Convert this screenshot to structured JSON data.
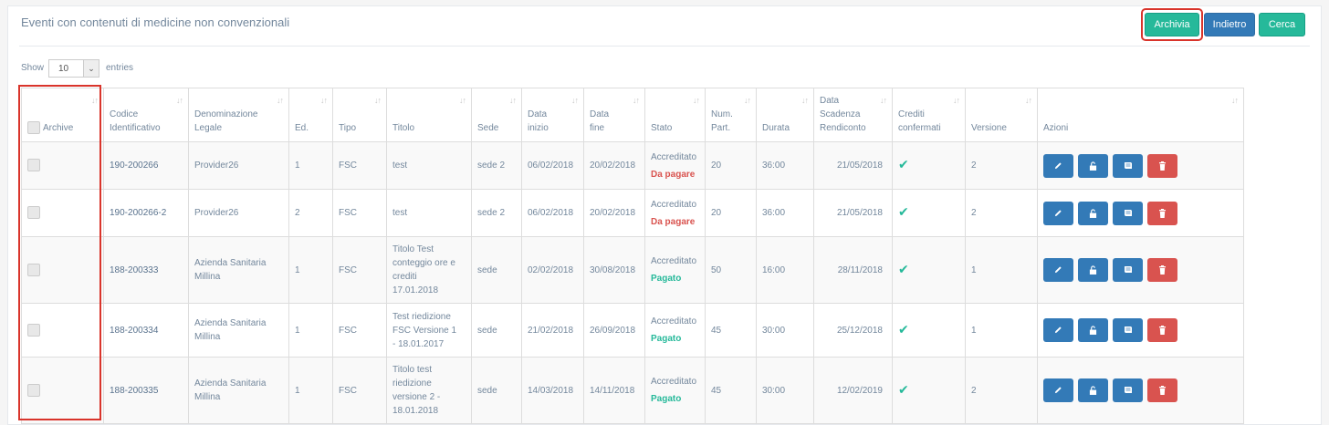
{
  "header": {
    "title": "Eventi con contenuti di medicine non convenzionali",
    "buttons": {
      "archivia": "Archivia",
      "indietro": "Indietro",
      "cerca": "Cerca"
    }
  },
  "length_menu": {
    "show_label": "Show",
    "selected": "10",
    "entries_label": "entries"
  },
  "table": {
    "columns": {
      "archive": "Archive",
      "codice": [
        "Codice",
        "Identificativo"
      ],
      "denominazione": [
        "Denominazione",
        "Legale"
      ],
      "ed": "Ed.",
      "tipo": "Tipo",
      "titolo": "Titolo",
      "sede": "Sede",
      "data_inizio": [
        "Data",
        "inizio"
      ],
      "data_fine": [
        "Data",
        "fine"
      ],
      "stato": "Stato",
      "num_part": [
        "Num.",
        "Part."
      ],
      "durata": "Durata",
      "data_scadenza": [
        "Data",
        "Scadenza",
        "Rendiconto"
      ],
      "crediti": [
        "Crediti",
        "confermati"
      ],
      "versione": "Versione",
      "azioni": "Azioni"
    },
    "rows": [
      {
        "codice": "190-200266",
        "denominazione": [
          "Provider26"
        ],
        "ed": "1",
        "tipo": "FSC",
        "titolo": [
          "test"
        ],
        "sede": "sede 2",
        "data_inizio": "06/02/2018",
        "data_fine": "20/02/2018",
        "stato": "Accreditato",
        "pagamento": "Da pagare",
        "pagamento_color": "#d9534f",
        "num_part": "20",
        "durata": "36:00",
        "data_scadenza": "21/05/2018",
        "versione": "2"
      },
      {
        "codice": "190-200266-2",
        "denominazione": [
          "Provider26"
        ],
        "ed": "2",
        "tipo": "FSC",
        "titolo": [
          "test"
        ],
        "sede": "sede 2",
        "data_inizio": "06/02/2018",
        "data_fine": "20/02/2018",
        "stato": "Accreditato",
        "pagamento": "Da pagare",
        "pagamento_color": "#d9534f",
        "num_part": "20",
        "durata": "36:00",
        "data_scadenza": "21/05/2018",
        "versione": "2"
      },
      {
        "codice": "188-200333",
        "denominazione": [
          "Azienda Sanitaria",
          "Millina"
        ],
        "ed": "1",
        "tipo": "FSC",
        "titolo": [
          "Titolo Test",
          "conteggio ore e",
          "crediti",
          "17.01.2018"
        ],
        "sede": "sede",
        "data_inizio": "02/02/2018",
        "data_fine": "30/08/2018",
        "stato": "Accreditato",
        "pagamento": "Pagato",
        "pagamento_color": "#26b99a",
        "num_part": "50",
        "durata": "16:00",
        "data_scadenza": "28/11/2018",
        "versione": "1"
      },
      {
        "codice": "188-200334",
        "denominazione": [
          "Azienda Sanitaria",
          "Millina"
        ],
        "ed": "1",
        "tipo": "FSC",
        "titolo": [
          "Test riedizione",
          "FSC Versione 1",
          "- 18.01.2017"
        ],
        "sede": "sede",
        "data_inizio": "21/02/2018",
        "data_fine": "26/09/2018",
        "stato": "Accreditato",
        "pagamento": "Pagato",
        "pagamento_color": "#26b99a",
        "num_part": "45",
        "durata": "30:00",
        "data_scadenza": "25/12/2018",
        "versione": "1"
      },
      {
        "codice": "188-200335",
        "denominazione": [
          "Azienda Sanitaria",
          "Millina"
        ],
        "ed": "1",
        "tipo": "FSC",
        "titolo": [
          "Titolo test",
          "riedizione",
          "versione 2 -",
          "18.01.2018"
        ],
        "sede": "sede",
        "data_inizio": "14/03/2018",
        "data_fine": "14/11/2018",
        "stato": "Accreditato",
        "pagamento": "Pagato",
        "pagamento_color": "#26b99a",
        "num_part": "45",
        "durata": "30:00",
        "data_scadenza": "12/02/2019",
        "versione": "2"
      }
    ],
    "row_actions": [
      "pencil-icon",
      "unlock-icon",
      "book-icon",
      "trash-icon"
    ],
    "crediti_confermati_icon": "check-icon"
  },
  "colors": {
    "accent_green": "#26b99a",
    "primary_blue": "#337ab7",
    "danger_red": "#d9534f",
    "highlight_red": "#d9342b"
  }
}
